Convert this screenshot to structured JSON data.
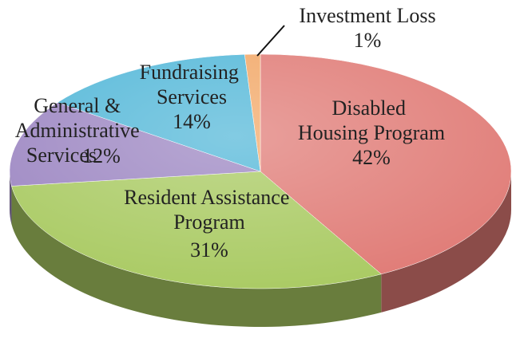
{
  "chart_data": {
    "type": "pie3d",
    "categories": [
      "Disabled Housing Program",
      "Resident Assistance Program",
      "General & Administrative Services",
      "Fundraising Services",
      "Investment Loss"
    ],
    "values": [
      42,
      31,
      12,
      14,
      1
    ],
    "value_labels": [
      "42%",
      "31%",
      "12%",
      "14%",
      "1%"
    ],
    "colors": [
      "#e07b76",
      "#a9ca62",
      "#9c86c2",
      "#52b7d8",
      "#f2a766"
    ]
  }
}
